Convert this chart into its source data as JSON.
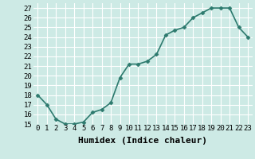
{
  "x": [
    0,
    1,
    2,
    3,
    4,
    5,
    6,
    7,
    8,
    9,
    10,
    11,
    12,
    13,
    14,
    15,
    16,
    17,
    18,
    19,
    20,
    21,
    22,
    23
  ],
  "y": [
    18,
    17,
    15.5,
    15,
    15,
    15.2,
    16.2,
    16.5,
    17.2,
    19.8,
    21.2,
    21.2,
    21.5,
    22.2,
    24.2,
    24.7,
    25.0,
    26.0,
    26.5,
    27.0,
    27.0,
    27.0,
    25.0,
    24.0
  ],
  "line_color": "#2d7a6e",
  "marker": "D",
  "marker_size": 2.5,
  "background_color": "#cdeae5",
  "grid_color": "#ffffff",
  "xlabel": "Humidex (Indice chaleur)",
  "xlim": [
    -0.5,
    23.5
  ],
  "ylim": [
    15,
    27.5
  ],
  "yticks": [
    15,
    16,
    17,
    18,
    19,
    20,
    21,
    22,
    23,
    24,
    25,
    26,
    27
  ],
  "xticks": [
    0,
    1,
    2,
    3,
    4,
    5,
    6,
    7,
    8,
    9,
    10,
    11,
    12,
    13,
    14,
    15,
    16,
    17,
    18,
    19,
    20,
    21,
    22,
    23
  ],
  "xtick_labels": [
    "0",
    "1",
    "2",
    "3",
    "4",
    "5",
    "6",
    "7",
    "8",
    "9",
    "10",
    "11",
    "12",
    "13",
    "14",
    "15",
    "16",
    "17",
    "18",
    "19",
    "20",
    "21",
    "22",
    "23"
  ],
  "ytick_labels": [
    "15",
    "16",
    "17",
    "18",
    "19",
    "20",
    "21",
    "22",
    "23",
    "24",
    "25",
    "26",
    "27"
  ],
  "tick_fontsize": 6.5,
  "xlabel_fontsize": 8,
  "line_width": 1.2
}
